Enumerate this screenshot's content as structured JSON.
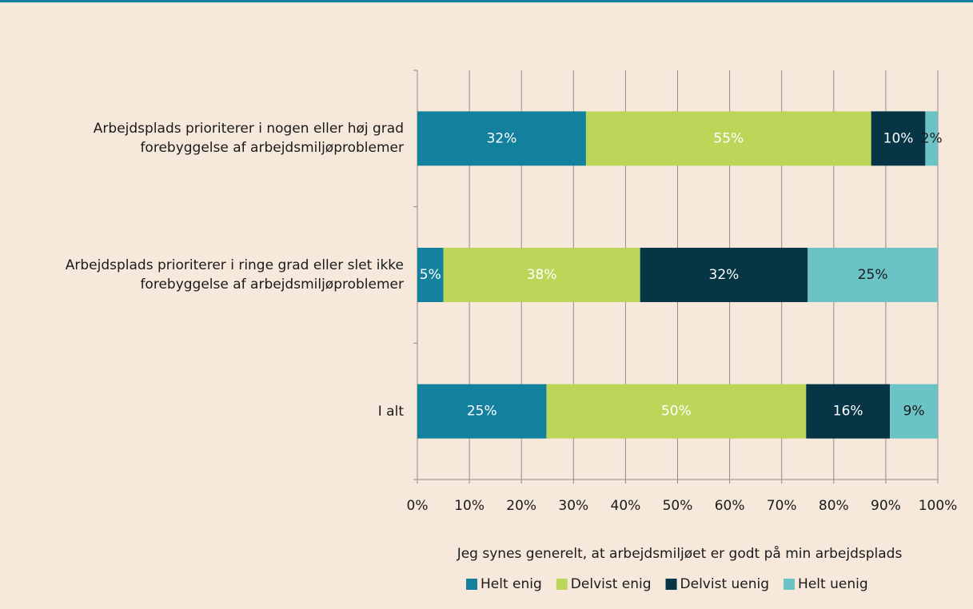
{
  "chart_data": {
    "type": "stacked-barh",
    "categories": [
      "Arbejdsplads prioriterer i nogen eller høj grad forebyggelse af arbejdsmiljøproblemer",
      "Arbejdsplads prioriterer i ringe grad eller slet ikke forebyggelse af arbejdsmiljøproblemer",
      "I alt"
    ],
    "series": [
      {
        "name": "Helt enig",
        "color": "#13809e",
        "values": [
          32.4,
          5,
          24.8
        ],
        "value_labels": [
          "32%",
          "5%",
          "25%"
        ]
      },
      {
        "name": "Delvist enig",
        "color": "#bcd65a",
        "values": [
          54.8,
          37.8,
          49.9
        ],
        "value_labels": [
          "55%",
          "38%",
          "50%"
        ]
      },
      {
        "name": "Delvist uenig",
        "color": "#063545",
        "values": [
          10.4,
          32.2,
          16.1
        ],
        "value_labels": [
          "10%",
          "32%",
          "16%"
        ]
      },
      {
        "name": "Helt uenig",
        "color": "#6bc3c6",
        "values": [
          2.4,
          25,
          9.2
        ],
        "value_labels": [
          "2%",
          "25%",
          "9%"
        ]
      }
    ],
    "x_label": "Jeg synes generelt, at arbejdsmiljøet er godt på min arbejdsplads",
    "xlim": [
      0,
      100
    ],
    "xticks": [
      {
        "value": 0,
        "label": "0%"
      },
      {
        "value": 10,
        "label": "10%"
      },
      {
        "value": 20,
        "label": "20%"
      },
      {
        "value": 30,
        "label": "30%"
      },
      {
        "value": 40,
        "label": "40%"
      },
      {
        "value": 50,
        "label": "50%"
      },
      {
        "value": 60,
        "label": "60%"
      },
      {
        "value": 70,
        "label": "70%"
      },
      {
        "value": 80,
        "label": "80%"
      },
      {
        "value": 90,
        "label": "90%"
      },
      {
        "value": 100,
        "label": "100%"
      }
    ],
    "grid": true,
    "legend": "bottom"
  }
}
